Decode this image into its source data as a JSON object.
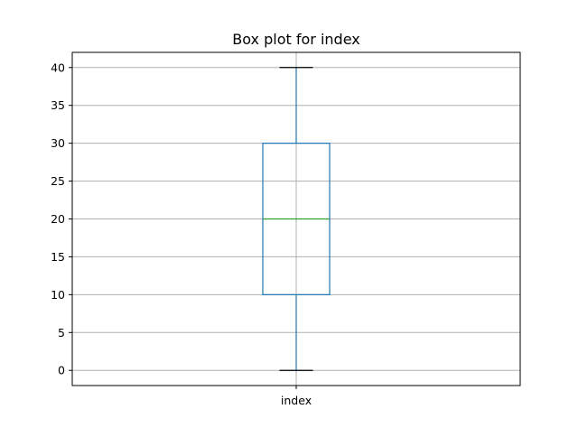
{
  "chart_data": {
    "type": "box",
    "title": "Box plot for index",
    "xlabel": "",
    "ylabel": "",
    "categories": [
      "index"
    ],
    "boxes": [
      {
        "category": "index",
        "min": 0,
        "q1": 10,
        "median": 20,
        "q3": 30,
        "max": 40
      }
    ],
    "ylim": [
      -2,
      42
    ],
    "yticks": [
      0,
      5,
      10,
      15,
      20,
      25,
      30,
      35,
      40
    ],
    "grid": true,
    "colors": {
      "box": "#1f77b4",
      "median": "#2ca02c",
      "caps": "#000000",
      "grid": "#b0b0b0",
      "axes": "#000000"
    }
  }
}
